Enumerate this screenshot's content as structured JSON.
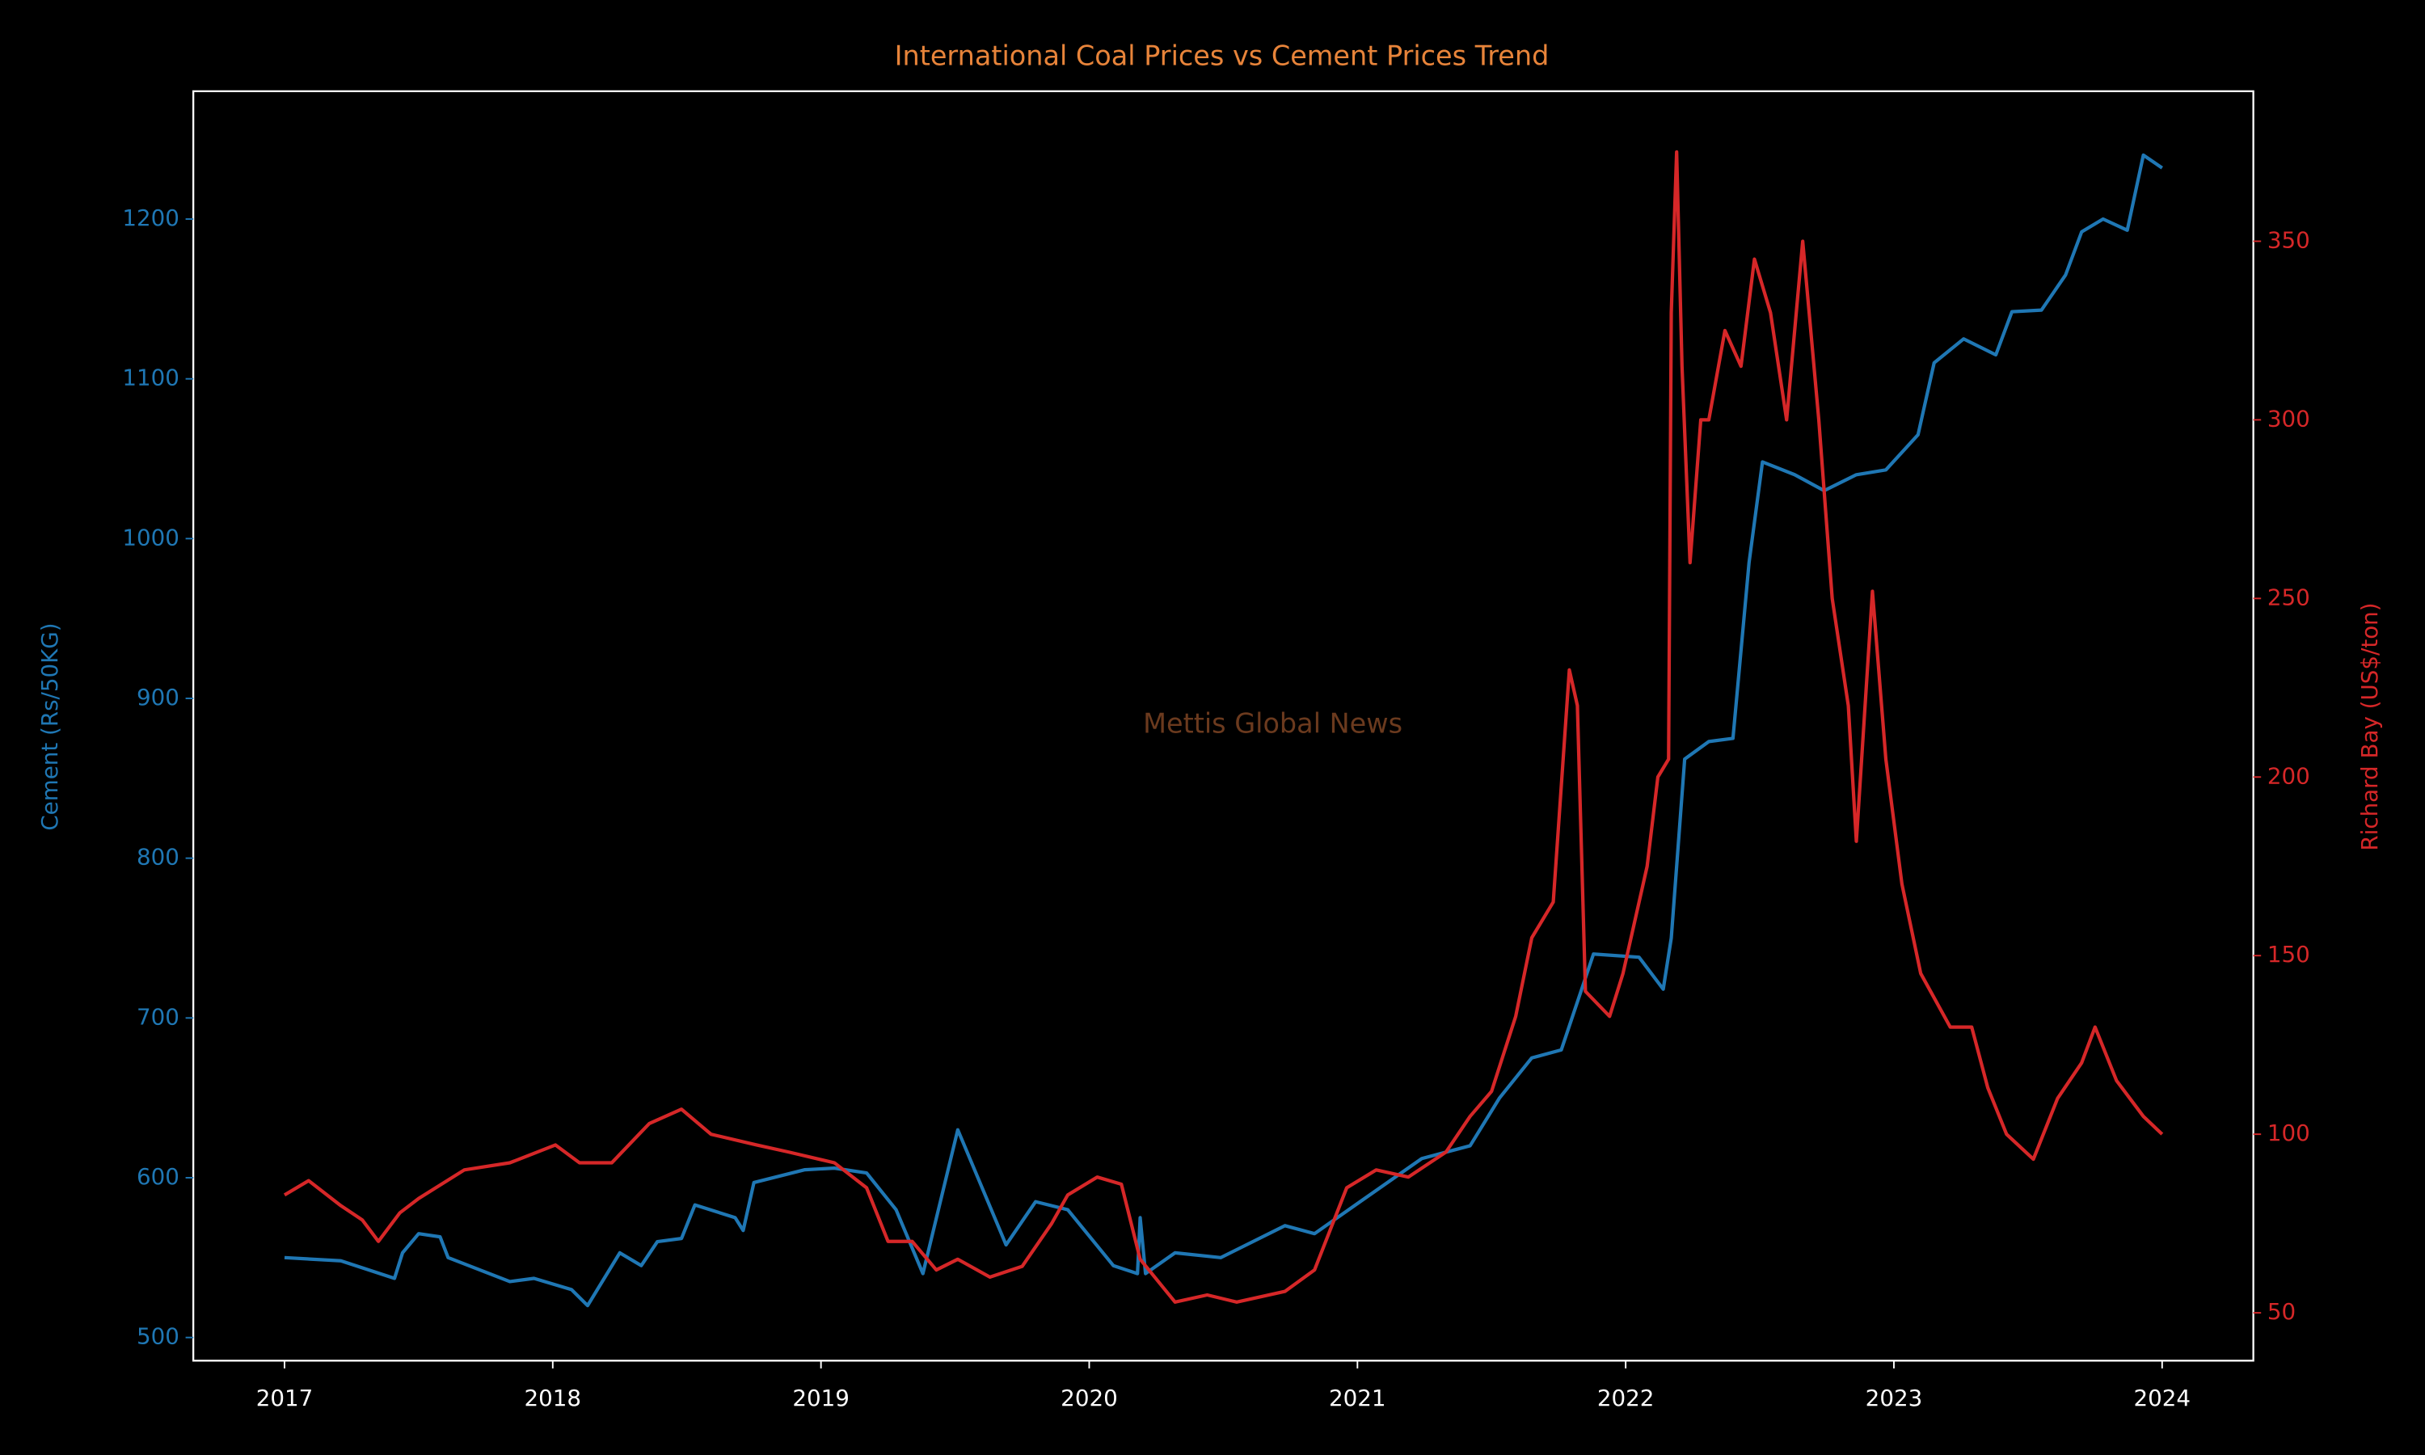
{
  "chart_data": {
    "type": "line",
    "title": "International Coal Prices vs Cement Prices Trend",
    "ylabel": "Cement (Rs/50KG)",
    "y2label": "Richard Bay (US$/ton)",
    "annotation": "Mettis Global News",
    "xlim": [
      2016.66,
      2024.34
    ],
    "xticks": [
      2017,
      2018,
      2019,
      2020,
      2021,
      2022,
      2023,
      2024
    ],
    "ylim": [
      485.5,
      1280
    ],
    "yticks": [
      500,
      600,
      700,
      800,
      900,
      1000,
      1100,
      1200
    ],
    "y2lim": [
      36.6,
      392
    ],
    "y2ticks": [
      50,
      100,
      150,
      200,
      250,
      300,
      350
    ],
    "series": [
      {
        "name": "Cement (Rs/50KG)",
        "color": "#1f77b4",
        "axis": "y",
        "x": [
          2017.0,
          2017.21,
          2017.41,
          2017.44,
          2017.5,
          2017.58,
          2017.61,
          2017.84,
          2017.93,
          2018.07,
          2018.13,
          2018.25,
          2018.33,
          2018.39,
          2018.48,
          2018.53,
          2018.68,
          2018.71,
          2018.75,
          2018.94,
          2019.05,
          2019.17,
          2019.28,
          2019.38,
          2019.51,
          2019.69,
          2019.8,
          2019.92,
          2020.09,
          2020.18,
          2020.19,
          2020.21,
          2020.32,
          2020.49,
          2020.73,
          2020.84,
          2021.01,
          2021.24,
          2021.42,
          2021.53,
          2021.65,
          2021.76,
          2021.88,
          2022.05,
          2022.14,
          2022.17,
          2022.22,
          2022.31,
          2022.4,
          2022.46,
          2022.51,
          2022.63,
          2022.74,
          2022.86,
          2022.97,
          2023.09,
          2023.15,
          2023.26,
          2023.38,
          2023.44,
          2023.55,
          2023.64,
          2023.7,
          2023.78,
          2023.87,
          2023.93,
          2024.0
        ],
        "values": [
          550,
          548,
          537,
          553,
          565,
          563,
          550,
          535,
          537,
          530,
          520,
          553,
          545,
          560,
          562,
          583,
          575,
          567,
          597,
          605,
          606,
          603,
          580,
          540,
          630,
          558,
          585,
          580,
          545,
          540,
          575,
          540,
          553,
          550,
          570,
          565,
          585,
          612,
          620,
          650,
          675,
          680,
          740,
          738,
          718,
          750,
          862,
          873,
          875,
          985,
          1048,
          1040,
          1030,
          1040,
          1043,
          1065,
          1110,
          1125,
          1115,
          1142,
          1143,
          1165,
          1192,
          1200,
          1193,
          1240,
          1232
        ]
      },
      {
        "name": "Richard Bay (US$/ton)",
        "color": "#d62728",
        "axis": "y2",
        "x": [
          2017.0,
          2017.09,
          2017.21,
          2017.29,
          2017.35,
          2017.43,
          2017.5,
          2017.67,
          2017.84,
          2018.01,
          2018.1,
          2018.22,
          2018.36,
          2018.48,
          2018.59,
          2018.76,
          2018.88,
          2019.05,
          2019.17,
          2019.25,
          2019.34,
          2019.43,
          2019.51,
          2019.63,
          2019.75,
          2019.86,
          2019.92,
          2020.03,
          2020.12,
          2020.19,
          2020.32,
          2020.44,
          2020.55,
          2020.73,
          2020.84,
          2020.96,
          2021.07,
          2021.19,
          2021.33,
          2021.42,
          2021.5,
          2021.59,
          2021.65,
          2021.73,
          2021.79,
          2021.82,
          2021.85,
          2021.94,
          2021.99,
          2022.02,
          2022.08,
          2022.12,
          2022.16,
          2022.17,
          2022.19,
          2022.21,
          2022.24,
          2022.28,
          2022.31,
          2022.37,
          2022.43,
          2022.48,
          2022.54,
          2022.6,
          2022.66,
          2022.72,
          2022.77,
          2022.83,
          2022.86,
          2022.92,
          2022.97,
          2023.03,
          2023.1,
          2023.21,
          2023.29,
          2023.35,
          2023.42,
          2023.52,
          2023.61,
          2023.7,
          2023.75,
          2023.83,
          2023.93,
          2024.0
        ],
        "values": [
          83,
          87,
          80,
          76,
          70,
          78,
          82,
          90,
          92,
          97,
          92,
          92,
          103,
          107,
          100,
          97,
          95,
          92,
          85,
          70,
          70,
          62,
          65,
          60,
          63,
          75,
          83,
          88,
          86,
          65,
          53,
          55,
          53,
          56,
          62,
          85,
          90,
          88,
          95,
          105,
          112,
          133,
          155,
          165,
          230,
          220,
          140,
          133,
          145,
          155,
          175,
          200,
          205,
          330,
          375,
          315,
          260,
          300,
          300,
          325,
          315,
          345,
          330,
          300,
          350,
          300,
          250,
          220,
          182,
          252,
          205,
          170,
          145,
          130,
          130,
          113,
          100,
          93,
          110,
          120,
          130,
          115,
          105,
          100
        ]
      }
    ]
  }
}
